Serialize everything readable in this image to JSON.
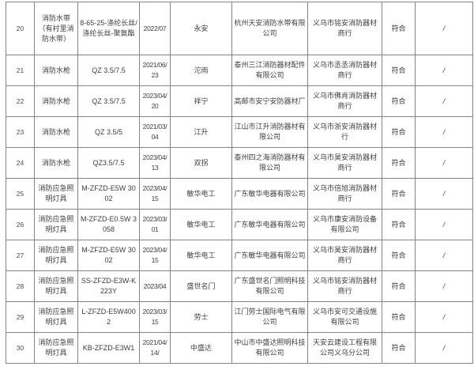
{
  "colors": {
    "background": "#ffffff",
    "table_border": "#858585",
    "text": "#3d3d3d"
  },
  "table": {
    "column_keys": [
      "serial",
      "product-name",
      "model",
      "date",
      "brand",
      "manufacturer",
      "dealer",
      "result",
      "remark"
    ],
    "rows": [
      {
        "cells": [
          "20",
          "消防水带（有衬里消防水带）",
          "8-65-25-涤纶长丝/涤纶长丝-聚氨酯",
          "2022/07",
          "永安",
          "杭州天安消防水带有限公司",
          "义乌市铭安消防器材商行",
          "符合",
          "/"
        ]
      },
      {
        "cells": [
          "21",
          "消防水枪",
          "QZ 3.5/7.5",
          "2021/06/23",
          "沱雨",
          "泰州三江消防器材配件有限公司",
          "义乌市丞丞消防器材商行",
          "符合",
          "/"
        ]
      },
      {
        "cells": [
          "22",
          "消防水枪",
          "QZ 3.5/7.5",
          "2023/04/20",
          "祥宁",
          "高邮市安宁安防器材厂",
          "义乌市佛肖消防器材商行",
          "符合",
          "/"
        ]
      },
      {
        "cells": [
          "23",
          "消防水枪",
          "QZ 3.5/5",
          "2021/03/04",
          "江升",
          "江山市江升消防器材有限公司",
          "义乌市浙安消防器材行",
          "符合",
          "/"
        ]
      },
      {
        "cells": [
          "24",
          "消防水枪",
          "QZ3.5/7.5",
          "2023/04/13",
          "双拐",
          "泰州四之海消防器材有限公司",
          "义乌市昊安消防器材商行",
          "符合",
          "/"
        ]
      },
      {
        "cells": [
          "25",
          "消防应急照明灯具",
          "M-ZFZD-E5W 3002",
          "2023/04/15",
          "敏华电工",
          "广东敏华电器有限公司",
          "义乌市倍旭消防器材商行",
          "符合",
          "/"
        ]
      },
      {
        "cells": [
          "26",
          "消防应急照明灯具",
          "M-ZFZD-E0.5W 3058",
          "2023/03/01",
          "敏华电工",
          "广东敏华电器有限公司",
          "义乌市康安消防设备有限公司",
          "符合",
          "/"
        ]
      },
      {
        "cells": [
          "27",
          "消防应急照明灯具",
          "M-ZFZD-E5W 3002",
          "2023/04/15",
          "敏华电工",
          "广东敏华电器有限公司",
          "义乌市昊安消防器材商行",
          "符合",
          "/"
        ]
      },
      {
        "cells": [
          "28",
          "消防应急照明灯具",
          "SS-ZFZD-E3W-K223Y",
          "2023/04",
          "盛世名门",
          "广东盛世名门照明科技有限公司",
          "义乌市铭安消防器材商行",
          "符合",
          "/"
        ]
      },
      {
        "cells": [
          "29",
          "消防应急照明灯具",
          "L-ZFZD-E5W4002",
          "2023/03/15",
          "劳士",
          "江门劳士国际电气有限公司",
          "义乌市安可交通设施有限公司",
          "符合",
          "/"
        ]
      },
      {
        "cells": [
          "30",
          "消防应急照明灯具",
          "KB-ZFZD-E3W1",
          "2021/04/14/",
          "中盛达",
          "中山市中盛达照明科技有限公司",
          "天安云建设工程有限公司义乌分公司",
          "符合",
          "/"
        ]
      }
    ]
  }
}
